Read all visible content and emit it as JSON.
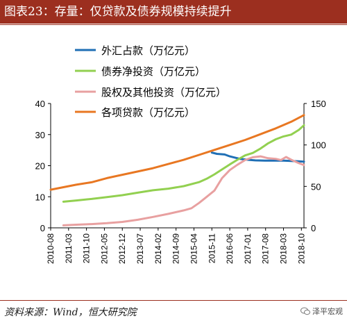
{
  "header": {
    "title": "图表23：存量：仅贷款及债券规模持续提升"
  },
  "footer": {
    "source": "资料来源：Wind，恒大研究院",
    "watermark": "泽平宏观"
  },
  "chart_data": {
    "type": "line",
    "left_axis": {
      "ylim": [
        0,
        40
      ],
      "ticks": [
        "0",
        "10",
        "20",
        "30",
        "40"
      ]
    },
    "right_axis": {
      "ylim": [
        0,
        150
      ],
      "ticks": [
        "0",
        "50",
        "100",
        "150"
      ]
    },
    "x_tick_labels": [
      "2010-08",
      "2011-03",
      "2011-10",
      "2012-05",
      "2012-12",
      "2013-07",
      "2014-02",
      "2014-09",
      "2015-04",
      "2015-11",
      "2016-06",
      "2017-01",
      "2017-08",
      "2018-03",
      "2018-10"
    ],
    "series": [
      {
        "name": "外汇占款（万亿元）",
        "color": "#1f6fb5",
        "axis": "left",
        "x": [
          "2015-11",
          "2016-01",
          "2016-04",
          "2016-06",
          "2016-08",
          "2016-10",
          "2017-01",
          "2017-04",
          "2017-08",
          "2017-12",
          "2018-03",
          "2018-06",
          "2018-09",
          "2018-11"
        ],
        "y": [
          24.2,
          23.8,
          23.6,
          23.0,
          22.6,
          22.2,
          21.9,
          21.7,
          21.6,
          21.6,
          21.6,
          21.5,
          21.4,
          21.3
        ]
      },
      {
        "name": "债券净投资（万亿元）",
        "color": "#92d050",
        "axis": "left",
        "x": [
          "2011-01",
          "2011-06",
          "2011-12",
          "2012-06",
          "2012-12",
          "2013-06",
          "2013-12",
          "2014-06",
          "2014-12",
          "2015-06",
          "2015-09",
          "2015-12",
          "2016-03",
          "2016-06",
          "2016-09",
          "2016-12",
          "2017-03",
          "2017-06",
          "2017-09",
          "2017-12",
          "2018-03",
          "2018-06",
          "2018-09",
          "2018-11"
        ],
        "y": [
          8.4,
          8.8,
          9.3,
          9.9,
          10.5,
          11.3,
          12.1,
          12.6,
          13.4,
          14.7,
          15.8,
          17.2,
          18.8,
          20.4,
          21.9,
          23.3,
          24.1,
          25.5,
          27.2,
          28.5,
          29.4,
          30.0,
          31.5,
          33.0
        ]
      },
      {
        "name": "股权及其他投资（万亿元）",
        "color": "#e8a0a0",
        "axis": "left",
        "x": [
          "2011-01",
          "2011-06",
          "2011-12",
          "2012-06",
          "2012-12",
          "2013-06",
          "2013-12",
          "2014-06",
          "2014-12",
          "2015-03",
          "2015-06",
          "2015-09",
          "2015-12",
          "2016-03",
          "2016-06",
          "2016-09",
          "2016-12",
          "2017-03",
          "2017-06",
          "2017-09",
          "2017-12",
          "2018-02",
          "2018-04",
          "2018-06",
          "2018-09",
          "2018-11"
        ],
        "y": [
          0.8,
          1.0,
          1.2,
          1.5,
          1.9,
          2.6,
          3.5,
          4.5,
          5.6,
          6.3,
          8.0,
          10.0,
          12.0,
          16.0,
          18.6,
          20.3,
          21.8,
          22.7,
          23.0,
          22.4,
          22.2,
          21.8,
          22.8,
          21.9,
          20.8,
          20.2
        ]
      },
      {
        "name": "各项贷款（万亿元）",
        "color": "#e87722",
        "axis": "right",
        "x": [
          "2010-08",
          "2011-01",
          "2011-06",
          "2011-12",
          "2012-06",
          "2012-12",
          "2013-06",
          "2013-12",
          "2014-06",
          "2014-12",
          "2015-06",
          "2015-12",
          "2016-06",
          "2016-12",
          "2017-06",
          "2017-12",
          "2018-06",
          "2018-11"
        ],
        "y": [
          46,
          49,
          52,
          55,
          60,
          64,
          68,
          72,
          77,
          82,
          88,
          94,
          100,
          106,
          113,
          120,
          128,
          136
        ]
      }
    ],
    "legend_position": "top-left"
  }
}
